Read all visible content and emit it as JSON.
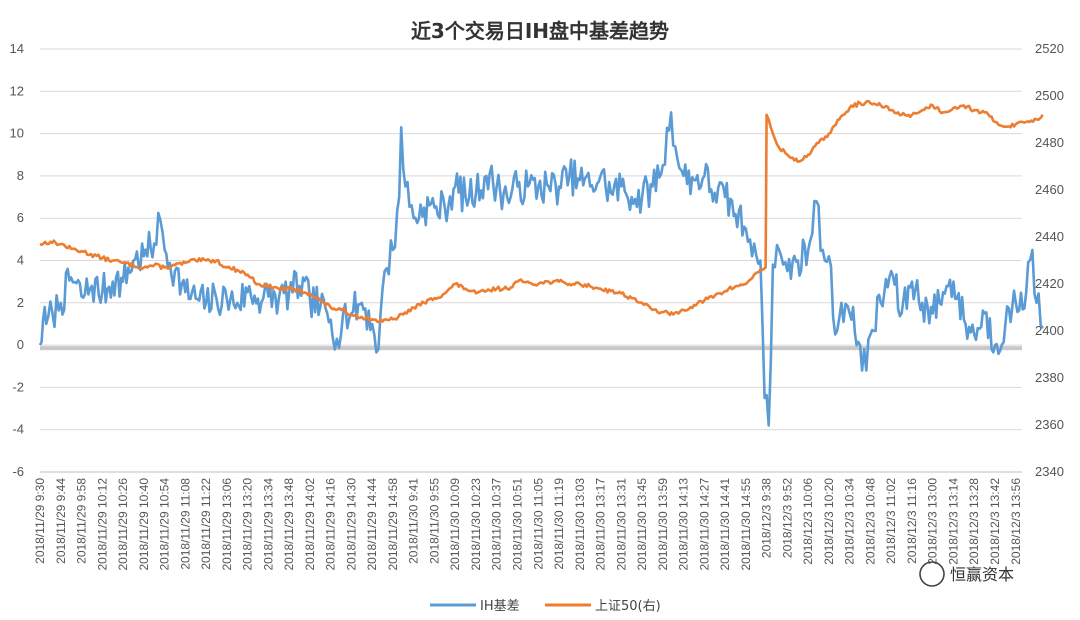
{
  "chart_data": {
    "type": "line",
    "title": "近3个交易日IH盘中基差趋势",
    "y_left": {
      "ticks": [
        -6,
        -4,
        -2,
        0,
        2,
        4,
        6,
        8,
        10,
        12,
        14
      ],
      "range": [
        -6,
        14
      ]
    },
    "y_right": {
      "ticks": [
        2340,
        2360,
        2380,
        2400,
        2420,
        2440,
        2460,
        2480,
        2500,
        2520
      ],
      "range": [
        2340,
        2520
      ]
    },
    "x_tick_labels": [
      "2018/11/29 9:30",
      "2018/11/29 9:44",
      "2018/11/29 9:58",
      "2018/11/29 10:12",
      "2018/11/29 10:26",
      "2018/11/29 10:40",
      "2018/11/29 10:54",
      "2018/11/29 11:08",
      "2018/11/29 11:22",
      "2018/11/29 13:06",
      "2018/11/29 13:20",
      "2018/11/29 13:34",
      "2018/11/29 13:48",
      "2018/11/29 14:02",
      "2018/11/29 14:16",
      "2018/11/29 14:30",
      "2018/11/29 14:44",
      "2018/11/29 14:58",
      "2018/11/30 9:41",
      "2018/11/30 9:55",
      "2018/11/30 10:09",
      "2018/11/30 10:23",
      "2018/11/30 10:37",
      "2018/11/30 10:51",
      "2018/11/30 11:05",
      "2018/11/30 11:19",
      "2018/11/30 13:03",
      "2018/11/30 13:17",
      "2018/11/30 13:31",
      "2018/11/30 13:45",
      "2018/11/30 13:59",
      "2018/11/30 14:13",
      "2018/11/30 14:27",
      "2018/11/30 14:41",
      "2018/11/30 14:55",
      "2018/12/3 9:38",
      "2018/12/3 9:52",
      "2018/12/3 10:06",
      "2018/12/3 10:20",
      "2018/12/3 10:34",
      "2018/12/3 10:48",
      "2018/12/3 11:02",
      "2018/12/3 11:16",
      "2018/12/3 13:00",
      "2018/12/3 13:14",
      "2018/12/3 13:28",
      "2018/12/3 13:42",
      "2018/12/3 13:56"
    ],
    "series": [
      {
        "name": "IH基差",
        "axis": "left",
        "color": "#5B9BD5",
        "keypoints": [
          [
            0,
            0.0
          ],
          [
            0.15,
            1.2
          ],
          [
            0.3,
            1.0
          ],
          [
            0.6,
            1.5
          ],
          [
            1,
            2.0
          ],
          [
            1.5,
            3.2
          ],
          [
            2,
            2.3
          ],
          [
            2.5,
            2.8
          ],
          [
            3,
            2.5
          ],
          [
            3.5,
            3.0
          ],
          [
            4,
            3.0
          ],
          [
            4.5,
            4.0
          ],
          [
            5,
            4.2
          ],
          [
            5.5,
            4.8
          ],
          [
            5.8,
            5.9
          ],
          [
            6,
            4.5
          ],
          [
            6.5,
            3.5
          ],
          [
            7,
            2.5
          ],
          [
            7.5,
            2.2
          ],
          [
            8,
            2.0
          ],
          [
            8.5,
            2.2
          ],
          [
            9,
            2.2
          ],
          [
            9.5,
            2.0
          ],
          [
            10,
            2.5
          ],
          [
            10.5,
            2.2
          ],
          [
            11,
            2.3
          ],
          [
            11.5,
            2.2
          ],
          [
            12,
            2.5
          ],
          [
            12.5,
            2.8
          ],
          [
            13,
            2.2
          ],
          [
            13.5,
            1.8
          ],
          [
            14,
            1.2
          ],
          [
            14.3,
            0.3
          ],
          [
            14.6,
            1.5
          ],
          [
            15,
            1.5
          ],
          [
            15.5,
            2.0
          ],
          [
            16,
            1.0
          ],
          [
            16.3,
            -0.2
          ],
          [
            16.6,
            3.5
          ],
          [
            17,
            4.5
          ],
          [
            17.3,
            7.0
          ],
          [
            17.4,
            10.3
          ],
          [
            17.6,
            7.5
          ],
          [
            18,
            6.0
          ],
          [
            18.5,
            6.5
          ],
          [
            19,
            6.5
          ],
          [
            19.5,
            6.5
          ],
          [
            20,
            7.5
          ],
          [
            20.5,
            7.0
          ],
          [
            21,
            7.2
          ],
          [
            21.5,
            8.0
          ],
          [
            22,
            7.5
          ],
          [
            22.5,
            7.0
          ],
          [
            23,
            7.5
          ],
          [
            23.5,
            7.5
          ],
          [
            24,
            7.5
          ],
          [
            24.5,
            7.5
          ],
          [
            25,
            7.5
          ],
          [
            25.5,
            8.0
          ],
          [
            26,
            7.8
          ],
          [
            26.5,
            7.5
          ],
          [
            27,
            8.0
          ],
          [
            27.5,
            7.2
          ],
          [
            28,
            7.5
          ],
          [
            28.5,
            7.0
          ],
          [
            29,
            7.0
          ],
          [
            29.5,
            7.5
          ],
          [
            30,
            8.5
          ],
          [
            30.4,
            11.0
          ],
          [
            30.7,
            8.8
          ],
          [
            31,
            8.0
          ],
          [
            31.5,
            7.8
          ],
          [
            32,
            8.0
          ],
          [
            32.5,
            7.2
          ],
          [
            33,
            7.0
          ],
          [
            33.5,
            6.2
          ],
          [
            34,
            5.5
          ],
          [
            34.4,
            4.8
          ],
          [
            34.7,
            4.0
          ],
          [
            34.8,
            1.0
          ],
          [
            34.9,
            -2.5
          ],
          [
            35.1,
            -3.8
          ],
          [
            35.3,
            3.8
          ],
          [
            35.6,
            4.5
          ],
          [
            36,
            3.5
          ],
          [
            36.5,
            4.0
          ],
          [
            37,
            4.5
          ],
          [
            37.4,
            6.8
          ],
          [
            37.7,
            4.5
          ],
          [
            38,
            4.2
          ],
          [
            38.3,
            0.5
          ],
          [
            38.6,
            2.0
          ],
          [
            39,
            1.5
          ],
          [
            39.5,
            0.0
          ],
          [
            39.8,
            -1.2
          ],
          [
            40,
            0.5
          ],
          [
            40.5,
            2.0
          ],
          [
            41,
            3.5
          ],
          [
            41.5,
            1.5
          ],
          [
            42,
            3.0
          ],
          [
            42.5,
            2.0
          ],
          [
            43,
            1.5
          ],
          [
            43.5,
            2.5
          ],
          [
            44,
            3.0
          ],
          [
            44.5,
            1.2
          ],
          [
            45,
            0.5
          ],
          [
            45.5,
            1.5
          ],
          [
            46,
            0.0
          ],
          [
            46.5,
            1.0
          ],
          [
            47,
            2.0
          ],
          [
            47.5,
            2.5
          ],
          [
            47.8,
            4.5
          ],
          [
            48,
            2.0
          ],
          [
            48.3,
            0.8
          ]
        ]
      },
      {
        "name": "上证50(右)",
        "axis": "right",
        "color": "#ED7D31",
        "keypoints": [
          [
            0,
            2437
          ],
          [
            0.5,
            2438
          ],
          [
            1,
            2437
          ],
          [
            1.5,
            2435
          ],
          [
            2,
            2434
          ],
          [
            3,
            2431
          ],
          [
            3.5,
            2430
          ],
          [
            4,
            2429
          ],
          [
            4.5,
            2428
          ],
          [
            5,
            2427
          ],
          [
            5.5,
            2428
          ],
          [
            6,
            2427
          ],
          [
            6.5,
            2428
          ],
          [
            7,
            2429
          ],
          [
            7.5,
            2430
          ],
          [
            8,
            2430
          ],
          [
            8.5,
            2430
          ],
          [
            9,
            2427
          ],
          [
            9.5,
            2426
          ],
          [
            10,
            2424
          ],
          [
            10.5,
            2420
          ],
          [
            11,
            2419
          ],
          [
            11.5,
            2418
          ],
          [
            12,
            2418
          ],
          [
            12.5,
            2417
          ],
          [
            13,
            2416
          ],
          [
            13.5,
            2413
          ],
          [
            14,
            2410
          ],
          [
            14.5,
            2409
          ],
          [
            15,
            2407
          ],
          [
            15.5,
            2406
          ],
          [
            16,
            2405
          ],
          [
            16.5,
            2404
          ],
          [
            17,
            2405
          ],
          [
            17.5,
            2407
          ],
          [
            18,
            2410
          ],
          [
            18.5,
            2412
          ],
          [
            19,
            2414
          ],
          [
            19.5,
            2416
          ],
          [
            20,
            2420
          ],
          [
            20.5,
            2418
          ],
          [
            21,
            2416
          ],
          [
            21.5,
            2417
          ],
          [
            22,
            2418
          ],
          [
            22.5,
            2418
          ],
          [
            23,
            2421
          ],
          [
            23.5,
            2421
          ],
          [
            24,
            2420
          ],
          [
            24.5,
            2421
          ],
          [
            25,
            2421
          ],
          [
            25.5,
            2420
          ],
          [
            26,
            2420
          ],
          [
            26.5,
            2419
          ],
          [
            27,
            2418
          ],
          [
            27.5,
            2417
          ],
          [
            28,
            2416
          ],
          [
            28.5,
            2414
          ],
          [
            29,
            2412
          ],
          [
            29.5,
            2409
          ],
          [
            30,
            2408
          ],
          [
            30.5,
            2407
          ],
          [
            31,
            2409
          ],
          [
            31.5,
            2411
          ],
          [
            32,
            2413
          ],
          [
            32.5,
            2415
          ],
          [
            33,
            2417
          ],
          [
            33.5,
            2419
          ],
          [
            34,
            2420
          ],
          [
            34.4,
            2424
          ],
          [
            34.8,
            2426
          ],
          [
            34.95,
            2427
          ],
          [
            35.0,
            2492
          ],
          [
            35.3,
            2484
          ],
          [
            35.6,
            2478
          ],
          [
            36,
            2475
          ],
          [
            36.5,
            2472
          ],
          [
            37,
            2475
          ],
          [
            37.5,
            2480
          ],
          [
            38,
            2484
          ],
          [
            38.5,
            2490
          ],
          [
            39,
            2495
          ],
          [
            39.5,
            2497
          ],
          [
            40,
            2497
          ],
          [
            40.5,
            2496
          ],
          [
            41,
            2494
          ],
          [
            41.5,
            2492
          ],
          [
            42,
            2492
          ],
          [
            42.5,
            2494
          ],
          [
            43,
            2496
          ],
          [
            43.5,
            2493
          ],
          [
            44,
            2495
          ],
          [
            44.5,
            2496
          ],
          [
            45,
            2494
          ],
          [
            45.5,
            2493
          ],
          [
            46,
            2489
          ],
          [
            46.5,
            2487
          ],
          [
            47,
            2488
          ],
          [
            47.5,
            2489
          ],
          [
            48,
            2490
          ],
          [
            48.3,
            2492
          ]
        ]
      }
    ],
    "legend": {
      "position": "bottom",
      "entries": [
        "IH基差",
        "上证50(右)"
      ]
    },
    "grid": {
      "horizontal": true,
      "vertical": false
    }
  },
  "watermark": {
    "text": "恒赢资本"
  }
}
